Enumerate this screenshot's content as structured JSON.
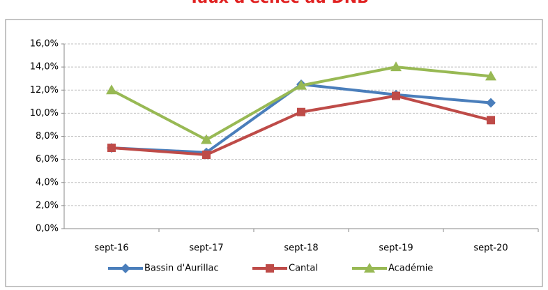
{
  "chart_data": {
    "type": "line",
    "title": "Taux d'échec au DNB",
    "categories": [
      "sept-16",
      "sept-17",
      "sept-18",
      "sept-19",
      "sept-20"
    ],
    "series": [
      {
        "name": "Bassin d'Aurillac",
        "color": "#4a7ebb",
        "marker": "diamond",
        "values": [
          7.0,
          6.6,
          12.5,
          11.6,
          10.9
        ]
      },
      {
        "name": "Cantal",
        "color": "#be4b48",
        "marker": "square",
        "values": [
          7.0,
          6.4,
          10.1,
          11.5,
          9.4
        ]
      },
      {
        "name": "Académie",
        "color": "#98b954",
        "marker": "triangle",
        "values": [
          12.0,
          7.7,
          12.4,
          14.0,
          13.2
        ]
      }
    ],
    "ylim": [
      0,
      16
    ],
    "yticks": [
      {
        "value": 0,
        "label": "0,0%"
      },
      {
        "value": 2,
        "label": "2,0%"
      },
      {
        "value": 4,
        "label": "4,0%"
      },
      {
        "value": 6,
        "label": "6,0%"
      },
      {
        "value": 8,
        "label": "8,0%"
      },
      {
        "value": 10,
        "label": "10,0%"
      },
      {
        "value": 12,
        "label": "12,0%"
      },
      {
        "value": 14,
        "label": "14,0%"
      },
      {
        "value": 16,
        "label": "16,0%"
      }
    ],
    "grid": true,
    "legend": "bottom"
  }
}
